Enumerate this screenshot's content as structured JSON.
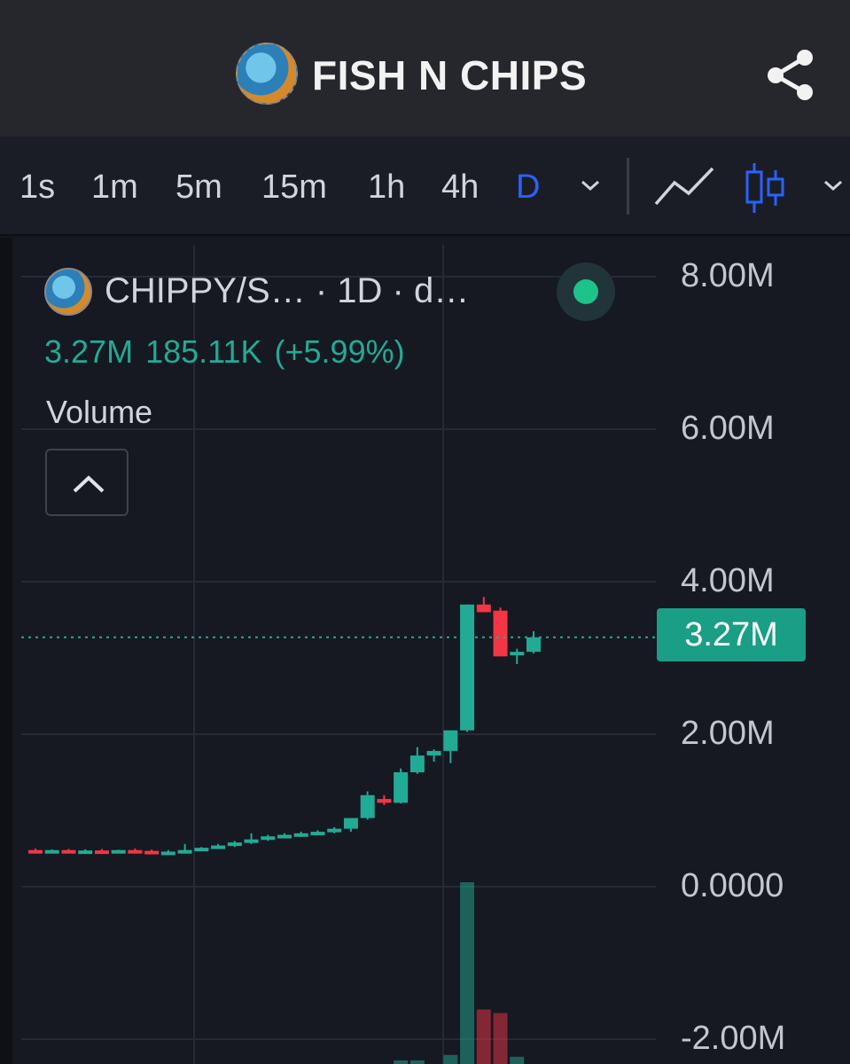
{
  "header": {
    "title": "FISH N CHIPS",
    "logo_icon": "token-logo-icon",
    "share_icon": "share-icon"
  },
  "toolbar": {
    "timeframes": [
      "1s",
      "1m",
      "5m",
      "15m",
      "1h",
      "4h",
      "D"
    ],
    "active_timeframe": "D",
    "accent": "#2962ff"
  },
  "legend": {
    "symbol": "CHIPPY/S… · 1D · d…",
    "last": "3.27M",
    "change": "185.11K",
    "change_pct": "(+5.99%)",
    "volume_label": "Volume",
    "status_color": "#1ec28b"
  },
  "price_axis": {
    "labels": [
      "8.00M",
      "6.00M",
      "4.00M",
      "2.00M",
      "0.0000",
      "-2.00M"
    ],
    "current_price": "3.27M"
  },
  "chart_data": {
    "type": "candlestick",
    "ylim": [
      -2000000,
      8000000
    ],
    "up_color": "#22ab94",
    "down_color": "#f23645",
    "candles": [
      {
        "o": 480000,
        "h": 500000,
        "l": 460000,
        "c": 470000
      },
      {
        "o": 470000,
        "h": 490000,
        "l": 455000,
        "c": 480000
      },
      {
        "o": 480000,
        "h": 495000,
        "l": 465000,
        "c": 470000
      },
      {
        "o": 470000,
        "h": 490000,
        "l": 455000,
        "c": 475000
      },
      {
        "o": 475000,
        "h": 495000,
        "l": 460000,
        "c": 465000
      },
      {
        "o": 465000,
        "h": 485000,
        "l": 450000,
        "c": 480000
      },
      {
        "o": 480000,
        "h": 500000,
        "l": 465000,
        "c": 470000
      },
      {
        "o": 470000,
        "h": 485000,
        "l": 430000,
        "c": 440000
      },
      {
        "o": 440000,
        "h": 480000,
        "l": 430000,
        "c": 460000
      },
      {
        "o": 460000,
        "h": 560000,
        "l": 450000,
        "c": 480000
      },
      {
        "o": 480000,
        "h": 520000,
        "l": 470000,
        "c": 510000
      },
      {
        "o": 510000,
        "h": 560000,
        "l": 500000,
        "c": 540000
      },
      {
        "o": 540000,
        "h": 600000,
        "l": 520000,
        "c": 580000
      },
      {
        "o": 580000,
        "h": 700000,
        "l": 560000,
        "c": 620000
      },
      {
        "o": 620000,
        "h": 680000,
        "l": 600000,
        "c": 660000
      },
      {
        "o": 660000,
        "h": 700000,
        "l": 640000,
        "c": 680000
      },
      {
        "o": 680000,
        "h": 720000,
        "l": 660000,
        "c": 700000
      },
      {
        "o": 700000,
        "h": 740000,
        "l": 680000,
        "c": 720000
      },
      {
        "o": 720000,
        "h": 780000,
        "l": 700000,
        "c": 760000
      },
      {
        "o": 760000,
        "h": 820000,
        "l": 720000,
        "c": 900000
      },
      {
        "o": 900000,
        "h": 1250000,
        "l": 880000,
        "c": 1200000
      },
      {
        "o": 1150000,
        "h": 1200000,
        "l": 1070000,
        "c": 1100000
      },
      {
        "o": 1100000,
        "h": 1550000,
        "l": 1090000,
        "c": 1500000
      },
      {
        "o": 1500000,
        "h": 1830000,
        "l": 1480000,
        "c": 1720000
      },
      {
        "o": 1720000,
        "h": 1800000,
        "l": 1640000,
        "c": 1780000
      },
      {
        "o": 1780000,
        "h": 2050000,
        "l": 1620000,
        "c": 2050000
      },
      {
        "o": 2050000,
        "h": 3700000,
        "l": 2030000,
        "c": 3700000
      },
      {
        "o": 3700000,
        "h": 3800000,
        "l": 3600000,
        "c": 3600000
      },
      {
        "o": 3620000,
        "h": 3660000,
        "l": 3020000,
        "c": 3020000
      },
      {
        "o": 3050000,
        "h": 3120000,
        "l": 2920000,
        "c": 3080000
      },
      {
        "o": 3080000,
        "h": 3350000,
        "l": 3060000,
        "c": 3270000
      }
    ],
    "volume": [
      0,
      0,
      0,
      0,
      0,
      0,
      0,
      0,
      0,
      0,
      0,
      0,
      0,
      0,
      0,
      0,
      0,
      0,
      0,
      0,
      0,
      0,
      2,
      2,
      0,
      5,
      100,
      30,
      28,
      4,
      0
    ]
  }
}
